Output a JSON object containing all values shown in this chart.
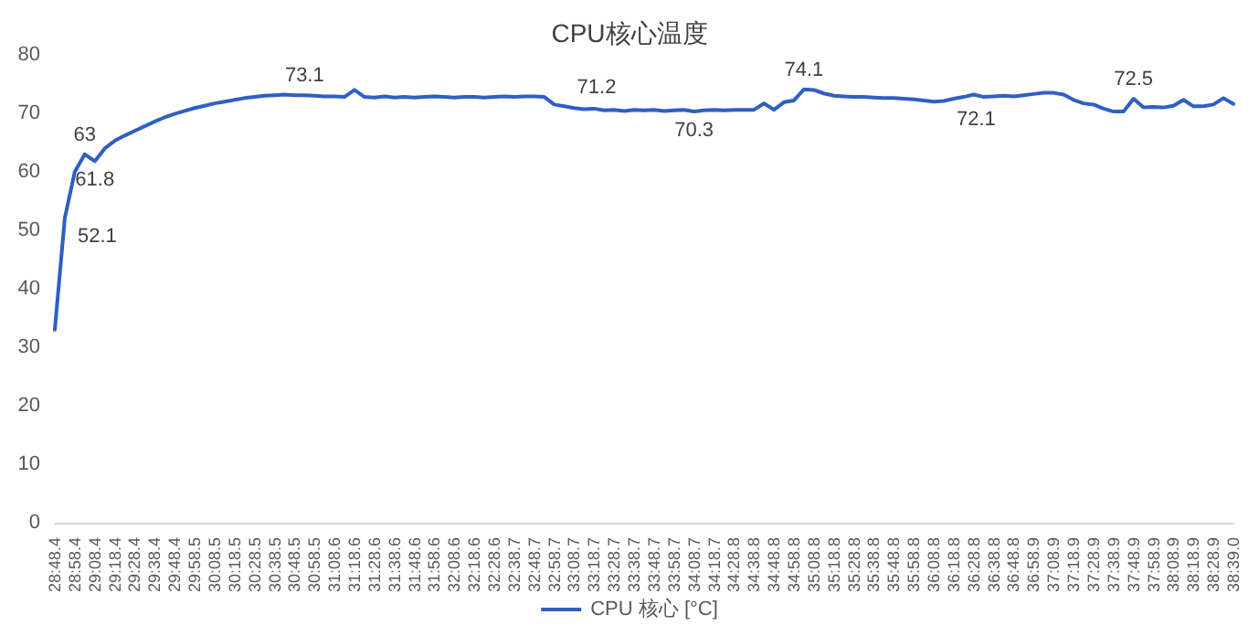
{
  "chart_data": {
    "type": "line",
    "title": "CPU核心温度",
    "categories": [
      "28:48.4",
      null,
      "28:58.4",
      null,
      "29:08.4",
      null,
      "29:18.4",
      null,
      "29:28.4",
      null,
      "29:38.4",
      null,
      "29:48.4",
      null,
      "29:58.5",
      null,
      "30:08.5",
      null,
      "30:18.5",
      null,
      "30:28.5",
      null,
      "30:38.5",
      null,
      "30:48.5",
      null,
      "30:58.5",
      null,
      "31:08.6",
      null,
      "31:18.6",
      null,
      "31:28.6",
      null,
      "31:38.6",
      null,
      "31:48.6",
      null,
      "31:58.6",
      null,
      "32:08.6",
      null,
      "32:18.6",
      null,
      "32:28.6",
      null,
      "32:38.7",
      null,
      "32:48.7",
      null,
      "32:58.7",
      null,
      "33:08.7",
      null,
      "33:18.7",
      null,
      "33:28.7",
      null,
      "33:38.7",
      null,
      "33:48.7",
      null,
      "33:58.7",
      null,
      "34:08.7",
      null,
      "34:18.7",
      null,
      "34:28.8",
      null,
      "34:38.8",
      null,
      "34:48.8",
      null,
      "34:58.8",
      null,
      "35:08.8",
      null,
      "35:18.8",
      null,
      "35:28.8",
      null,
      "35:38.8",
      null,
      "35:48.8",
      null,
      "35:58.8",
      null,
      "36:08.8",
      null,
      "36:18.8",
      null,
      "36:28.8",
      null,
      "36:38.8",
      null,
      "36:48.8",
      null,
      "36:58.9",
      null,
      "37:08.9",
      null,
      "37:18.9",
      null,
      "37:28.9",
      null,
      "37:38.9",
      null,
      "37:48.9",
      null,
      "37:58.9",
      null,
      "38:08.9",
      null,
      "38:18.9",
      null,
      "38:28.9",
      null,
      "38:39.0"
    ],
    "series": [
      {
        "name": "CPU 核心 [°C]",
        "color": "#2f5fc4",
        "values": [
          33,
          52.1,
          60,
          63,
          61.8,
          64,
          65.3,
          66.2,
          67,
          67.8,
          68.6,
          69.3,
          69.9,
          70.4,
          70.9,
          71.3,
          71.7,
          72,
          72.3,
          72.6,
          72.8,
          73,
          73.1,
          73.2,
          73.1,
          73.1,
          73,
          72.9,
          72.9,
          72.8,
          74,
          72.8,
          72.7,
          72.9,
          72.7,
          72.8,
          72.7,
          72.8,
          72.9,
          72.8,
          72.7,
          72.8,
          72.8,
          72.7,
          72.8,
          72.9,
          72.8,
          72.9,
          72.9,
          72.8,
          71.5,
          71.2,
          70.9,
          70.7,
          70.8,
          70.5,
          70.6,
          70.4,
          70.6,
          70.5,
          70.6,
          70.4,
          70.5,
          70.6,
          70.3,
          70.5,
          70.6,
          70.5,
          70.6,
          70.6,
          70.6,
          71.7,
          70.6,
          71.9,
          72.2,
          74.1,
          74,
          73.4,
          73,
          72.9,
          72.8,
          72.8,
          72.7,
          72.6,
          72.6,
          72.5,
          72.4,
          72.2,
          72,
          72.1,
          72.5,
          72.8,
          73.2,
          72.8,
          72.9,
          73,
          72.9,
          73.1,
          73.3,
          73.5,
          73.5,
          73.2,
          72.3,
          71.7,
          71.5,
          70.8,
          70.3,
          70.3,
          72.5,
          71,
          71.1,
          71,
          71.3,
          72.3,
          71.2,
          71.2,
          71.5,
          72.6,
          71.6
        ],
        "value_labels": [
          null,
          "52.1",
          null,
          "63",
          "61.8",
          null,
          null,
          null,
          null,
          null,
          null,
          null,
          null,
          null,
          null,
          null,
          null,
          null,
          null,
          null,
          null,
          null,
          null,
          null,
          null,
          "73.1",
          null,
          null,
          null,
          null,
          null,
          null,
          null,
          null,
          null,
          null,
          null,
          null,
          null,
          null,
          null,
          null,
          null,
          null,
          null,
          null,
          null,
          null,
          null,
          null,
          null,
          "71.2",
          null,
          null,
          null,
          null,
          null,
          null,
          null,
          null,
          null,
          null,
          null,
          null,
          "70.3",
          null,
          null,
          null,
          null,
          null,
          null,
          null,
          null,
          null,
          null,
          "74.1",
          null,
          null,
          null,
          null,
          null,
          null,
          null,
          null,
          null,
          null,
          null,
          null,
          null,
          "72.1",
          null,
          null,
          null,
          null,
          null,
          null,
          null,
          null,
          null,
          null,
          null,
          null,
          null,
          null,
          null,
          null,
          null,
          null,
          "72.5",
          null,
          null,
          null,
          null,
          null,
          null,
          null,
          null,
          null,
          null
        ]
      }
    ],
    "ylim": [
      0,
      80
    ],
    "yticks": [
      0,
      10,
      20,
      30,
      40,
      50,
      60,
      70,
      80
    ],
    "grid": false,
    "legend": "bottom",
    "marker": "none",
    "line_style": "solid"
  }
}
